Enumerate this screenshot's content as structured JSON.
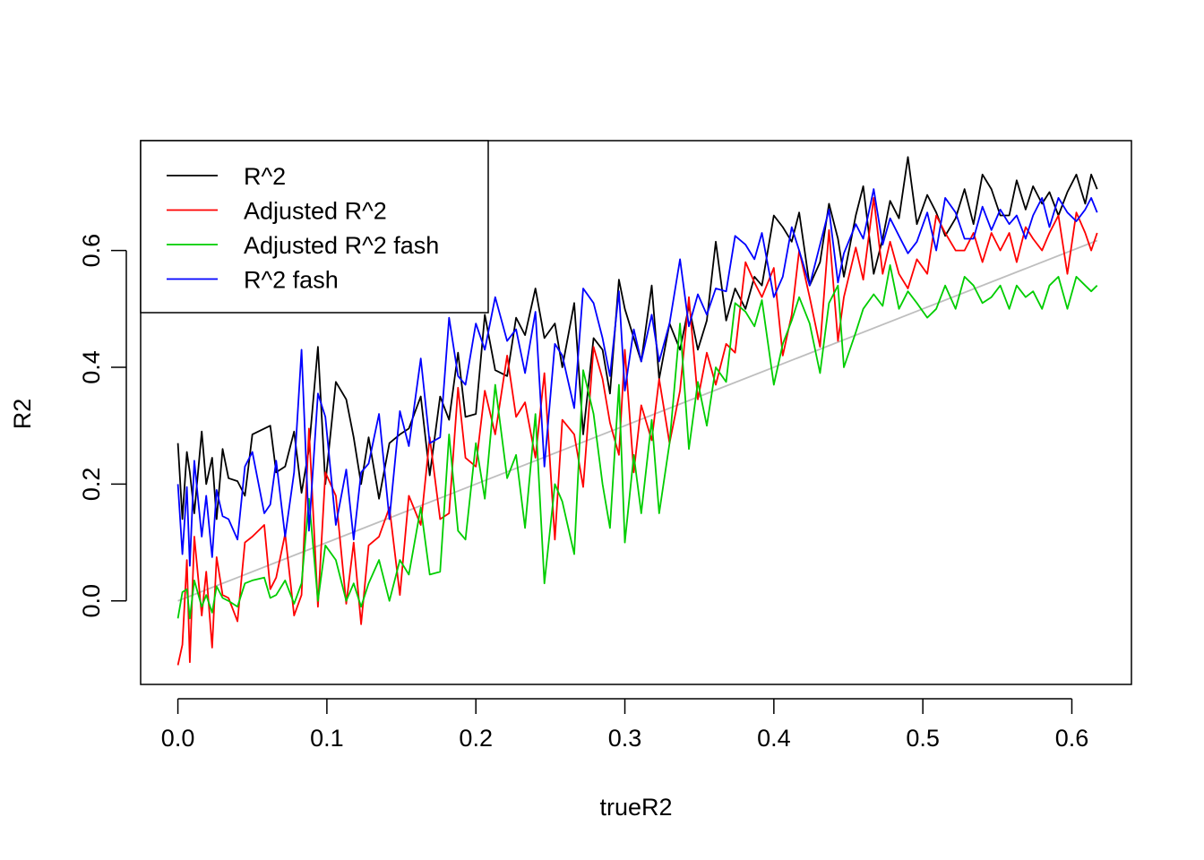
{
  "chart_data": {
    "type": "line",
    "title": "",
    "xlabel": "trueR2",
    "ylabel": "R2",
    "xlim": [
      -0.025,
      0.64
    ],
    "ylim": [
      -0.143,
      0.788
    ],
    "xticks": [
      0.0,
      0.1,
      0.2,
      0.3,
      0.4,
      0.5,
      0.6
    ],
    "xtick_labels": [
      "0.0",
      "0.1",
      "0.2",
      "0.3",
      "0.4",
      "0.5",
      "0.6"
    ],
    "yticks": [
      0.0,
      0.2,
      0.4,
      0.6
    ],
    "ytick_labels": [
      "0.0",
      "0.2",
      "0.4",
      "0.6"
    ],
    "grid": false,
    "legend": {
      "position": "top-left",
      "entries": [
        {
          "label": "R^2",
          "color": "#000000"
        },
        {
          "label": "Adjusted R^2",
          "color": "#ff0000"
        },
        {
          "label": "Adjusted R^2 fash",
          "color": "#00cd00"
        },
        {
          "label": "R^2 fash",
          "color": "#0000ff"
        }
      ]
    },
    "x": [
      0,
      0.003,
      0.006,
      0.008,
      0.011,
      0.016,
      0.019,
      0.023,
      0.026,
      0.03,
      0.034,
      0.04,
      0.045,
      0.05,
      0.058,
      0.062,
      0.066,
      0.072,
      0.078,
      0.083,
      0.088,
      0.094,
      0.099,
      0.106,
      0.113,
      0.118,
      0.123,
      0.128,
      0.135,
      0.142,
      0.149,
      0.155,
      0.163,
      0.169,
      0.176,
      0.182,
      0.188,
      0.193,
      0.2,
      0.206,
      0.213,
      0.221,
      0.227,
      0.233,
      0.24,
      0.246,
      0.253,
      0.258,
      0.266,
      0.272,
      0.279,
      0.285,
      0.29,
      0.296,
      0.3,
      0.306,
      0.311,
      0.318,
      0.323,
      0.33,
      0.337,
      0.343,
      0.349,
      0.355,
      0.361,
      0.368,
      0.374,
      0.381,
      0.387,
      0.392,
      0.4,
      0.406,
      0.412,
      0.417,
      0.424,
      0.431,
      0.437,
      0.443,
      0.447,
      0.455,
      0.46,
      0.467,
      0.473,
      0.478,
      0.484,
      0.49,
      0.496,
      0.503,
      0.509,
      0.515,
      0.522,
      0.528,
      0.534,
      0.54,
      0.546,
      0.552,
      0.558,
      0.563,
      0.569,
      0.574,
      0.58,
      0.585,
      0.591,
      0.597,
      0.603,
      0.609,
      0.613,
      0.617
    ],
    "trend_line": {
      "color": "#bebebe",
      "x": [
        0,
        0.617
      ],
      "y": [
        0,
        0.617
      ]
    },
    "series": [
      {
        "name": "R^2",
        "color": "#000000",
        "values": [
          0.27,
          0.14,
          0.255,
          0.22,
          0.15,
          0.29,
          0.2,
          0.245,
          0.14,
          0.26,
          0.21,
          0.205,
          0.18,
          0.285,
          0.295,
          0.3,
          0.22,
          0.23,
          0.29,
          0.185,
          0.26,
          0.435,
          0.2,
          0.375,
          0.345,
          0.28,
          0.2,
          0.28,
          0.175,
          0.27,
          0.285,
          0.295,
          0.35,
          0.215,
          0.35,
          0.31,
          0.425,
          0.315,
          0.32,
          0.49,
          0.395,
          0.385,
          0.485,
          0.455,
          0.535,
          0.45,
          0.475,
          0.4,
          0.51,
          0.285,
          0.45,
          0.43,
          0.355,
          0.55,
          0.5,
          0.45,
          0.41,
          0.54,
          0.38,
          0.475,
          0.43,
          0.505,
          0.43,
          0.48,
          0.615,
          0.48,
          0.535,
          0.5,
          0.555,
          0.54,
          0.66,
          0.64,
          0.615,
          0.665,
          0.54,
          0.58,
          0.68,
          0.62,
          0.555,
          0.66,
          0.71,
          0.56,
          0.62,
          0.685,
          0.655,
          0.76,
          0.645,
          0.695,
          0.665,
          0.625,
          0.655,
          0.705,
          0.645,
          0.73,
          0.705,
          0.66,
          0.66,
          0.72,
          0.67,
          0.71,
          0.68,
          0.7,
          0.66,
          0.7,
          0.73,
          0.68,
          0.73,
          0.705
        ]
      },
      {
        "name": "Adjusted R^2",
        "color": "#ff0000",
        "values": [
          -0.11,
          -0.075,
          0.07,
          -0.105,
          0.11,
          -0.025,
          0.05,
          -0.08,
          0.075,
          0.01,
          0.005,
          -0.035,
          0.1,
          0.11,
          0.13,
          0.02,
          0.04,
          0.115,
          -0.025,
          0.01,
          0.295,
          -0.01,
          0.22,
          0.18,
          -0.005,
          0.1,
          -0.04,
          0.095,
          0.11,
          0.16,
          0.01,
          0.18,
          0.13,
          0.28,
          0.14,
          0.15,
          0.365,
          0.245,
          0.23,
          0.36,
          0.285,
          0.42,
          0.315,
          0.34,
          0.245,
          0.39,
          0.105,
          0.31,
          0.285,
          0.195,
          0.435,
          0.38,
          0.305,
          0.25,
          0.43,
          0.22,
          0.335,
          0.275,
          0.38,
          0.27,
          0.36,
          0.52,
          0.345,
          0.425,
          0.37,
          0.44,
          0.425,
          0.58,
          0.545,
          0.52,
          0.57,
          0.42,
          0.49,
          0.6,
          0.52,
          0.435,
          0.635,
          0.445,
          0.52,
          0.605,
          0.55,
          0.69,
          0.56,
          0.615,
          0.56,
          0.535,
          0.585,
          0.56,
          0.66,
          0.63,
          0.6,
          0.6,
          0.63,
          0.58,
          0.63,
          0.6,
          0.63,
          0.58,
          0.64,
          0.62,
          0.6,
          0.63,
          0.66,
          0.56,
          0.665,
          0.63,
          0.6,
          0.63
        ]
      },
      {
        "name": "Adjusted R^2 fash",
        "color": "#00cd00",
        "values": [
          -0.03,
          0.015,
          0.02,
          -0.03,
          0.035,
          -0.01,
          0.01,
          -0.02,
          0.025,
          0.005,
          0.0,
          -0.01,
          0.03,
          0.035,
          0.04,
          0.005,
          0.01,
          0.035,
          -0.005,
          0.03,
          0.175,
          0.0,
          0.095,
          0.07,
          0.0,
          0.03,
          -0.01,
          0.03,
          0.07,
          0.0,
          0.07,
          0.045,
          0.16,
          0.045,
          0.05,
          0.285,
          0.12,
          0.105,
          0.27,
          0.175,
          0.37,
          0.21,
          0.25,
          0.125,
          0.32,
          0.03,
          0.2,
          0.17,
          0.08,
          0.395,
          0.32,
          0.2,
          0.125,
          0.37,
          0.1,
          0.25,
          0.15,
          0.31,
          0.15,
          0.27,
          0.475,
          0.26,
          0.375,
          0.3,
          0.4,
          0.375,
          0.51,
          0.495,
          0.47,
          0.515,
          0.37,
          0.44,
          0.48,
          0.52,
          0.475,
          0.39,
          0.51,
          0.54,
          0.4,
          0.46,
          0.5,
          0.525,
          0.505,
          0.575,
          0.5,
          0.53,
          0.51,
          0.485,
          0.5,
          0.54,
          0.5,
          0.555,
          0.54,
          0.51,
          0.52,
          0.54,
          0.5,
          0.54,
          0.52,
          0.53,
          0.5,
          0.54,
          0.555,
          0.5,
          0.555,
          0.54,
          0.53,
          0.54
        ]
      },
      {
        "name": "R^2 fash",
        "color": "#0000ff",
        "values": [
          0.2,
          0.08,
          0.195,
          0.06,
          0.24,
          0.11,
          0.18,
          0.075,
          0.19,
          0.145,
          0.14,
          0.105,
          0.23,
          0.255,
          0.15,
          0.165,
          0.24,
          0.11,
          0.22,
          0.43,
          0.12,
          0.355,
          0.315,
          0.13,
          0.225,
          0.105,
          0.22,
          0.235,
          0.32,
          0.14,
          0.325,
          0.265,
          0.415,
          0.27,
          0.28,
          0.485,
          0.385,
          0.37,
          0.475,
          0.43,
          0.52,
          0.445,
          0.465,
          0.39,
          0.495,
          0.23,
          0.44,
          0.42,
          0.33,
          0.535,
          0.51,
          0.45,
          0.385,
          0.53,
          0.36,
          0.465,
          0.41,
          0.49,
          0.41,
          0.475,
          0.585,
          0.47,
          0.525,
          0.49,
          0.535,
          0.53,
          0.625,
          0.61,
          0.585,
          0.63,
          0.52,
          0.555,
          0.64,
          0.6,
          0.54,
          0.61,
          0.67,
          0.545,
          0.595,
          0.645,
          0.62,
          0.705,
          0.61,
          0.655,
          0.625,
          0.595,
          0.615,
          0.665,
          0.6,
          0.69,
          0.665,
          0.62,
          0.62,
          0.675,
          0.635,
          0.67,
          0.645,
          0.66,
          0.62,
          0.66,
          0.69,
          0.64,
          0.69,
          0.665,
          0.65,
          0.67,
          0.69,
          0.665
        ]
      }
    ]
  }
}
